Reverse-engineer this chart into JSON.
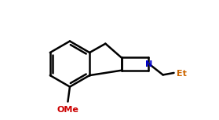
{
  "bg_color": "#ffffff",
  "line_color": "#000000",
  "N_color": "#0000cd",
  "OMe_color": "#cc0000",
  "Et_color": "#cc6600",
  "line_width": 1.8,
  "fig_width": 2.79,
  "fig_height": 1.53,
  "dpi": 100,
  "xlim": [
    -1.2,
    7.2
  ],
  "ylim": [
    -2.8,
    3.2
  ]
}
